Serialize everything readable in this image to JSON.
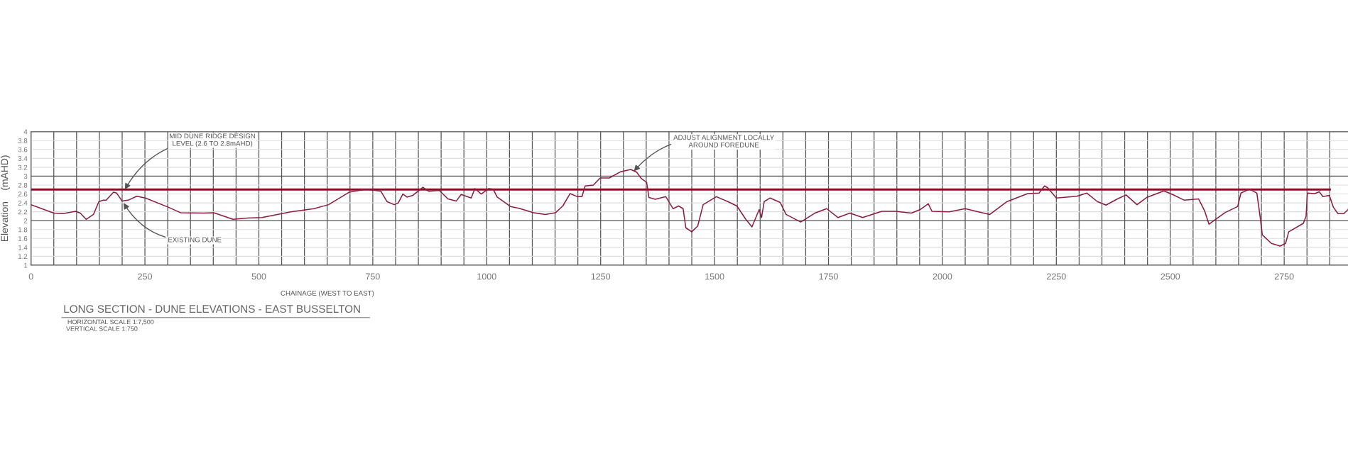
{
  "chart_data": {
    "type": "line",
    "title": "LONG SECTION - DUNE ELEVATIONS - EAST BUSSELTON",
    "xlabel": "CHAINAGE (WEST TO EAST)",
    "ylabel": "Elevation    (mAHD)",
    "series": [
      {
        "color": "#8b0f24",
        "x": [
          0,
          2850
        ],
        "values": [
          2.7,
          2.7
        ]
      },
      {
        "color": "#8c1c3c",
        "x": [
          0,
          50,
          70,
          98,
          108,
          121,
          137,
          149,
          159,
          165,
          181,
          188,
          200,
          213,
          232,
          251,
          302,
          328,
          379,
          401,
          424,
          443,
          475,
          507,
          570,
          621,
          653,
          698,
          736,
          768,
          781,
          797,
          806,
          816,
          825,
          838,
          860,
          873,
          896,
          915,
          933,
          944,
          966,
          974,
          988,
          1004,
          1014,
          1023,
          1052,
          1071,
          1103,
          1128,
          1151,
          1167,
          1183,
          1199,
          1209,
          1216,
          1234,
          1249,
          1269,
          1294,
          1316,
          1329,
          1339,
          1351,
          1356,
          1370,
          1393,
          1409,
          1421,
          1431,
          1437,
          1450,
          1463,
          1475,
          1504,
          1529,
          1549,
          1568,
          1582,
          1598,
          1603,
          1609,
          1622,
          1644,
          1657,
          1689,
          1720,
          1746,
          1771,
          1797,
          1825,
          1867,
          1897,
          1932,
          1951,
          1969,
          1977,
          2015,
          2050,
          2079,
          2104,
          2142,
          2187,
          2212,
          2224,
          2231,
          2250,
          2295,
          2317,
          2340,
          2359,
          2384,
          2403,
          2427,
          2448,
          2486,
          2505,
          2531,
          2562,
          2575,
          2585,
          2620,
          2648,
          2655,
          2674,
          2690,
          2697,
          2702,
          2722,
          2741,
          2753,
          2760,
          2792,
          2798,
          2801,
          2817,
          2827,
          2835,
          2849,
          2858,
          2868,
          2881,
          2890
        ],
        "values": [
          2.36,
          2.17,
          2.16,
          2.21,
          2.17,
          2.03,
          2.14,
          2.43,
          2.46,
          2.46,
          2.64,
          2.62,
          2.44,
          2.46,
          2.55,
          2.51,
          2.3,
          2.18,
          2.17,
          2.18,
          2.1,
          2.03,
          2.06,
          2.07,
          2.2,
          2.27,
          2.36,
          2.64,
          2.71,
          2.66,
          2.43,
          2.36,
          2.4,
          2.6,
          2.53,
          2.57,
          2.75,
          2.66,
          2.68,
          2.49,
          2.44,
          2.59,
          2.51,
          2.72,
          2.6,
          2.72,
          2.71,
          2.53,
          2.32,
          2.28,
          2.18,
          2.14,
          2.18,
          2.33,
          2.61,
          2.54,
          2.54,
          2.78,
          2.8,
          2.96,
          2.96,
          3.1,
          3.15,
          3.09,
          2.95,
          2.86,
          2.52,
          2.48,
          2.54,
          2.27,
          2.33,
          2.27,
          1.84,
          1.75,
          1.88,
          2.36,
          2.54,
          2.43,
          2.33,
          2.04,
          1.86,
          2.25,
          2.07,
          2.43,
          2.51,
          2.41,
          2.14,
          1.97,
          2.17,
          2.27,
          2.07,
          2.17,
          2.07,
          2.21,
          2.21,
          2.17,
          2.25,
          2.38,
          2.21,
          2.2,
          2.27,
          2.2,
          2.14,
          2.43,
          2.61,
          2.62,
          2.78,
          2.74,
          2.51,
          2.55,
          2.62,
          2.43,
          2.35,
          2.49,
          2.58,
          2.36,
          2.52,
          2.67,
          2.59,
          2.46,
          2.49,
          2.23,
          1.92,
          2.18,
          2.32,
          2.62,
          2.71,
          2.62,
          2.1,
          1.68,
          1.49,
          1.43,
          1.49,
          1.75,
          1.94,
          2.1,
          2.62,
          2.61,
          2.65,
          2.54,
          2.57,
          2.3,
          2.16,
          2.16,
          2.25
        ]
      }
    ],
    "xlim": [
      0,
      2890
    ],
    "xticks": [
      0,
      {
        "value": 50,
        "label": null
      },
      {
        "value": 100,
        "label": null
      },
      {
        "value": 150,
        "label": null
      },
      {
        "value": 200,
        "label": null
      },
      250,
      {
        "value": 300,
        "label": null
      },
      {
        "value": 350,
        "label": null
      },
      {
        "value": 400,
        "label": null
      },
      {
        "value": 450,
        "label": null
      },
      500,
      {
        "value": 550,
        "label": null
      },
      {
        "value": 600,
        "label": null
      },
      {
        "value": 650,
        "label": null
      },
      {
        "value": 700,
        "label": null
      },
      750,
      {
        "value": 800,
        "label": null
      },
      {
        "value": 850,
        "label": null
      },
      {
        "value": 900,
        "label": null
      },
      {
        "value": 950,
        "label": null
      },
      1000,
      {
        "value": 1050,
        "label": null
      },
      {
        "value": 1100,
        "label": null
      },
      {
        "value": 1150,
        "label": null
      },
      {
        "value": 1200,
        "label": null
      },
      1250,
      {
        "value": 1300,
        "label": null
      },
      {
        "value": 1350,
        "label": null
      },
      {
        "value": 1400,
        "label": null
      },
      {
        "value": 1450,
        "label": null
      },
      1500,
      {
        "value": 1550,
        "label": null
      },
      {
        "value": 1600,
        "label": null
      },
      {
        "value": 1650,
        "label": null
      },
      {
        "value": 1700,
        "label": null
      },
      1750,
      {
        "value": 1800,
        "label": null
      },
      {
        "value": 1850,
        "label": null
      },
      {
        "value": 1900,
        "label": null
      },
      {
        "value": 1950,
        "label": null
      },
      2000,
      {
        "value": 2050,
        "label": null
      },
      {
        "value": 2100,
        "label": null
      },
      {
        "value": 2150,
        "label": null
      },
      {
        "value": 2200,
        "label": null
      },
      2250,
      {
        "value": 2300,
        "label": null
      },
      {
        "value": 2350,
        "label": null
      },
      {
        "value": 2400,
        "label": null
      },
      {
        "value": 2450,
        "label": null
      },
      2500,
      {
        "value": 2550,
        "label": null
      },
      {
        "value": 2600,
        "label": null
      },
      {
        "value": 2650,
        "label": null
      },
      {
        "value": 2700,
        "label": null
      },
      2750,
      {
        "value": 2800,
        "label": null
      },
      {
        "value": 2850,
        "label": null
      }
    ],
    "ylim": [
      1,
      4
    ],
    "yticks": [
      1,
      1.2,
      1.4,
      1.6,
      1.8,
      2,
      2.2,
      2.4,
      2.6,
      2.8,
      3,
      3.2,
      3.4,
      3.6,
      3.8,
      4
    ],
    "grid": true,
    "marker": "none",
    "line_style": "solid",
    "annotations": [
      {
        "text": "MID DUNE RIDGE DESIGN\nLEVEL (2.6 TO 2.8mAHD)",
        "x": 206,
        "y": 2.7
      },
      {
        "text": "EXISTING DUNE",
        "x": 203,
        "y": 2.4
      },
      {
        "text": "ADJUST ALIGNMENT LOCALLY\nAROUND FOREDUNE",
        "x": 1323,
        "y": 3.11
      },
      "HORIZONTAL SCALE 1:7,500",
      "VERTICAL SCALE 1:750"
    ]
  }
}
